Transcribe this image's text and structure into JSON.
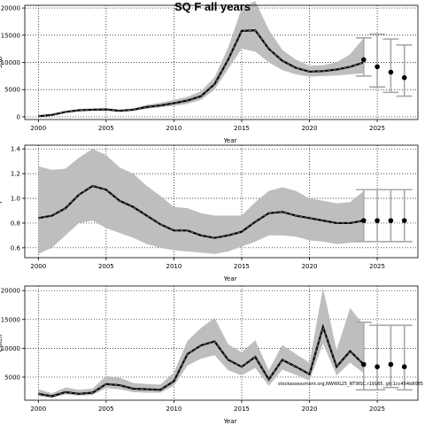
{
  "title": "SQ F all years",
  "caption": "stockassessment.org,NWWG25_NTWSC,r19165, git:1cc454b8085",
  "colors": {
    "band": "#bebebe",
    "line": "#000000",
    "projection_errorbar": "#a8a8a8",
    "grid": "#000000"
  },
  "chart_data": [
    {
      "type": "line",
      "panel": "SSB",
      "xlabel": "Year",
      "ylabel": "SSB",
      "xlim": [
        1999,
        2028
      ],
      "ylim": [
        -500,
        20500
      ],
      "xticks": [
        "2000",
        "2005",
        "2010",
        "2015",
        "2020",
        "2025"
      ],
      "yticks": [
        "0",
        "5000",
        "10000",
        "15000",
        "20000"
      ],
      "ytick_values": [
        0,
        5000,
        10000,
        15000,
        20000
      ],
      "grid": true,
      "x": [
        2000,
        2001,
        2002,
        2003,
        2004,
        2005,
        2006,
        2007,
        2008,
        2009,
        2010,
        2011,
        2012,
        2013,
        2014,
        2015,
        2016,
        2017,
        2018,
        2019,
        2020,
        2021,
        2022,
        2023,
        2024
      ],
      "series": [
        {
          "role": "estimate",
          "values": [
            100,
            350,
            900,
            1200,
            1300,
            1350,
            1100,
            1300,
            1800,
            2100,
            2500,
            3000,
            3800,
            6000,
            10500,
            15800,
            15900,
            12500,
            10300,
            9000,
            8300,
            8400,
            8700,
            9200,
            10000
          ]
        },
        {
          "role": "lower",
          "values": [
            50,
            280,
            750,
            1000,
            1100,
            1150,
            950,
            1100,
            1500,
            1750,
            2000,
            2400,
            3100,
            5000,
            8800,
            12500,
            12000,
            10000,
            8600,
            7800,
            7400,
            7500,
            7600,
            7800,
            8000
          ]
        },
        {
          "role": "upper",
          "values": [
            150,
            450,
            1100,
            1450,
            1550,
            1600,
            1350,
            1550,
            2200,
            2600,
            3100,
            3700,
            4700,
            7300,
            12700,
            20000,
            21300,
            16000,
            12300,
            10500,
            9400,
            9500,
            10000,
            11500,
            14500
          ]
        }
      ],
      "projection": [
        {
          "x": 2024,
          "median": 10500,
          "low": 7500,
          "high": 14500
        },
        {
          "x": 2025,
          "median": 9200,
          "low": 5500,
          "high": 15200
        },
        {
          "x": 2026,
          "median": 8200,
          "low": 4500,
          "high": 14300
        },
        {
          "x": 2027,
          "median": 7200,
          "low": 3800,
          "high": 13200
        }
      ]
    },
    {
      "type": "line",
      "panel": "F",
      "xlabel": "Year",
      "ylabel": "F",
      "xlim": [
        1999,
        2028
      ],
      "ylim": [
        0.52,
        1.43
      ],
      "xticks": [
        "2000",
        "2005",
        "2010",
        "2015",
        "2020",
        "2025"
      ],
      "yticks": [
        "0.6",
        "0.8",
        "1.0",
        "1.2",
        "1.4"
      ],
      "ytick_values": [
        0.6,
        0.8,
        1.0,
        1.2,
        1.4
      ],
      "grid": true,
      "x": [
        2000,
        2001,
        2002,
        2003,
        2004,
        2005,
        2006,
        2007,
        2008,
        2009,
        2010,
        2011,
        2012,
        2013,
        2014,
        2015,
        2016,
        2017,
        2018,
        2019,
        2020,
        2021,
        2022,
        2023,
        2024
      ],
      "series": [
        {
          "role": "estimate",
          "values": [
            0.84,
            0.86,
            0.92,
            1.03,
            1.1,
            1.07,
            0.98,
            0.93,
            0.86,
            0.79,
            0.74,
            0.74,
            0.7,
            0.68,
            0.7,
            0.73,
            0.81,
            0.88,
            0.89,
            0.86,
            0.84,
            0.82,
            0.8,
            0.8,
            0.82
          ]
        },
        {
          "role": "lower",
          "values": [
            0.55,
            0.6,
            0.7,
            0.8,
            0.82,
            0.76,
            0.72,
            0.68,
            0.63,
            0.6,
            0.58,
            0.57,
            0.56,
            0.55,
            0.57,
            0.61,
            0.65,
            0.7,
            0.7,
            0.69,
            0.66,
            0.65,
            0.63,
            0.64,
            0.65
          ]
        },
        {
          "role": "upper",
          "values": [
            1.26,
            1.23,
            1.24,
            1.33,
            1.4,
            1.35,
            1.25,
            1.2,
            1.1,
            1.02,
            0.93,
            0.92,
            0.88,
            0.86,
            0.86,
            0.86,
            0.97,
            1.06,
            1.09,
            1.06,
            1.0,
            0.98,
            0.96,
            0.97,
            1.06
          ]
        }
      ],
      "projection": [
        {
          "x": 2024,
          "median": 0.82,
          "low": 0.65,
          "high": 1.07
        },
        {
          "x": 2025,
          "median": 0.82,
          "low": 0.65,
          "high": 1.07
        },
        {
          "x": 2026,
          "median": 0.82,
          "low": 0.65,
          "high": 1.07
        },
        {
          "x": 2027,
          "median": 0.82,
          "low": 0.65,
          "high": 1.07
        }
      ]
    },
    {
      "type": "line",
      "panel": "Catch",
      "xlabel": "Year",
      "ylabel": "Catch",
      "xlim": [
        1999,
        2028
      ],
      "ylim": [
        1000,
        20800
      ],
      "xticks": [
        "2000",
        "2005",
        "2010",
        "2015",
        "2020",
        "2025"
      ],
      "yticks": [
        "5000",
        "10000",
        "15000",
        "20000"
      ],
      "ytick_values": [
        5000,
        10000,
        15000,
        20000
      ],
      "grid": true,
      "x": [
        2000,
        2001,
        2002,
        2003,
        2004,
        2005,
        2006,
        2007,
        2008,
        2009,
        2010,
        2011,
        2012,
        2013,
        2014,
        2015,
        2016,
        2017,
        2018,
        2019,
        2020,
        2021,
        2022,
        2023,
        2024
      ],
      "series": [
        {
          "role": "estimate",
          "values": [
            2100,
            1700,
            2400,
            2100,
            2300,
            3800,
            3600,
            3000,
            2900,
            2800,
            4300,
            9000,
            10500,
            11200,
            8000,
            6800,
            8500,
            4600,
            8000,
            6800,
            5500,
            13700,
            6800,
            9500,
            7200
          ]
        },
        {
          "role": "lower",
          "values": [
            1700,
            1400,
            2000,
            1800,
            1900,
            3100,
            2900,
            2400,
            2300,
            2300,
            3500,
            7000,
            8200,
            8800,
            6200,
            5300,
            6600,
            3500,
            6300,
            5400,
            4400,
            10800,
            5300,
            7500,
            5700
          ]
        },
        {
          "role": "upper",
          "values": [
            2900,
            2200,
            3200,
            2800,
            3000,
            5200,
            4900,
            4000,
            3800,
            3700,
            5800,
            11300,
            13500,
            15300,
            10700,
            9300,
            11400,
            6200,
            10600,
            9000,
            7500,
            20500,
            9700,
            17000,
            14000
          ]
        }
      ],
      "projection": [
        {
          "x": 2024,
          "median": 7200,
          "low": 2800,
          "high": 14500
        },
        {
          "x": 2025,
          "median": 6800,
          "low": 2800,
          "high": 14000
        },
        {
          "x": 2026,
          "median": 7200,
          "low": 3200,
          "high": 14000
        },
        {
          "x": 2027,
          "median": 6800,
          "low": 2800,
          "high": 14000
        }
      ]
    }
  ]
}
